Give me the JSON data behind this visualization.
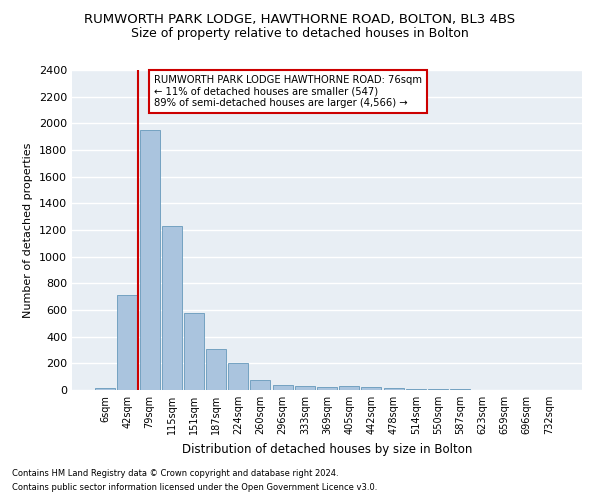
{
  "title": "RUMWORTH PARK LODGE, HAWTHORNE ROAD, BOLTON, BL3 4BS",
  "subtitle": "Size of property relative to detached houses in Bolton",
  "xlabel": "Distribution of detached houses by size in Bolton",
  "ylabel": "Number of detached properties",
  "footnote1": "Contains HM Land Registry data © Crown copyright and database right 2024.",
  "footnote2": "Contains public sector information licensed under the Open Government Licence v3.0.",
  "annotation_line1": "RUMWORTH PARK LODGE HAWTHORNE ROAD: 76sqm",
  "annotation_line2": "← 11% of detached houses are smaller (547)",
  "annotation_line3": "89% of semi-detached houses are larger (4,566) →",
  "bar_categories": [
    "6sqm",
    "42sqm",
    "79sqm",
    "115sqm",
    "151sqm",
    "187sqm",
    "224sqm",
    "260sqm",
    "296sqm",
    "333sqm",
    "369sqm",
    "405sqm",
    "442sqm",
    "478sqm",
    "514sqm",
    "550sqm",
    "587sqm",
    "623sqm",
    "659sqm",
    "696sqm",
    "732sqm"
  ],
  "bar_values": [
    15,
    710,
    1950,
    1230,
    580,
    305,
    200,
    75,
    40,
    30,
    25,
    30,
    25,
    15,
    10,
    8,
    5,
    3,
    2,
    2,
    2
  ],
  "bar_color": "#aac4de",
  "bar_edge_color": "#6699bb",
  "red_line_color": "#cc0000",
  "annotation_box_color": "#cc0000",
  "fig_background": "#ffffff",
  "plot_background": "#e8eef4",
  "ylim": [
    0,
    2400
  ],
  "yticks": [
    0,
    200,
    400,
    600,
    800,
    1000,
    1200,
    1400,
    1600,
    1800,
    2000,
    2200,
    2400
  ],
  "grid_color": "#ffffff",
  "title_fontsize": 9.5,
  "subtitle_fontsize": 9
}
